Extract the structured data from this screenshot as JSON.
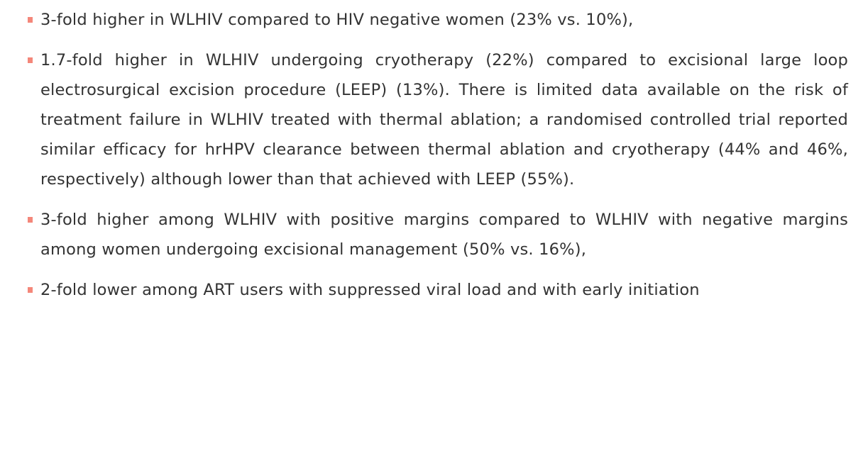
{
  "list": {
    "items": [
      "3-fold higher in WLHIV compared to HIV negative women (23% vs. 10%),",
      "1.7-fold higher in WLHIV undergoing cryotherapy (22%) compared to excisional large loop electrosurgical excision procedure (LEEP) (13%). There is limited data available on the risk of treatment failure in WLHIV treated with thermal ablation; a randomised controlled trial reported similar efficacy for hrHPV clearance between thermal ablation and cryotherapy (44% and 46%, respectively) although lower than that achieved with LEEP (55%).",
      "3-fold higher among WLHIV with positive margins compared to WLHIV with negative margins among women undergoing excisional management (50% vs. 16%),",
      "2-fold lower among ART users with suppressed viral load and with early initiation"
    ]
  }
}
